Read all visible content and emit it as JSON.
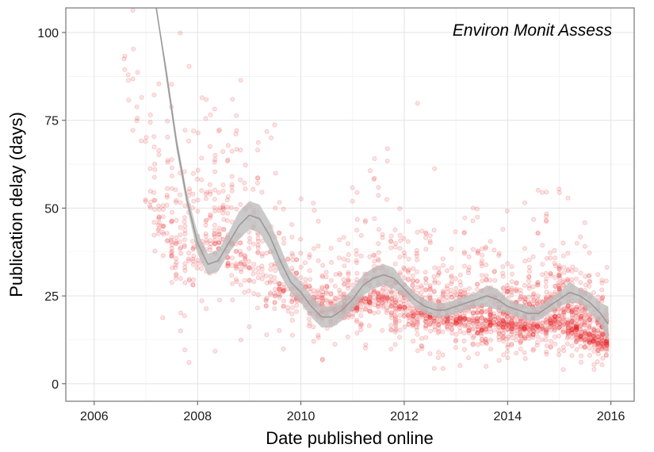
{
  "chart_data": {
    "type": "scatter",
    "title": "",
    "annotation": "Environ Monit Assess",
    "xlabel": "Date published online",
    "ylabel": "Publication delay (days)",
    "xlim": [
      2005.45,
      2016.45
    ],
    "ylim": [
      -5,
      107
    ],
    "x_ticks": [
      2006,
      2008,
      2010,
      2012,
      2014,
      2016
    ],
    "x_tick_labels": [
      "2006",
      "2008",
      "2010",
      "2012",
      "2014",
      "2016"
    ],
    "y_ticks": [
      0,
      25,
      50,
      75,
      100
    ],
    "y_tick_labels": [
      "0",
      "25",
      "50",
      "75",
      "100"
    ],
    "grid": true,
    "point_color": "#e41a1c",
    "point_alpha": 0.12,
    "smooth_color": "#9a9a9a",
    "smooth_band_color": "#bdbdbd",
    "density_profile": [
      {
        "x": 2006.6,
        "center": 95,
        "spread": 12,
        "weight": 0.4
      },
      {
        "x": 2007.0,
        "center": 60,
        "spread": 28,
        "weight": 1.0
      },
      {
        "x": 2007.5,
        "center": 40,
        "spread": 25,
        "weight": 1.6
      },
      {
        "x": 2008.0,
        "center": 40,
        "spread": 25,
        "weight": 2.0
      },
      {
        "x": 2008.5,
        "center": 45,
        "spread": 28,
        "weight": 2.2
      },
      {
        "x": 2009.0,
        "center": 35,
        "spread": 20,
        "weight": 1.6
      },
      {
        "x": 2009.5,
        "center": 30,
        "spread": 16,
        "weight": 1.4
      },
      {
        "x": 2010.0,
        "center": 25,
        "spread": 13,
        "weight": 2.2
      },
      {
        "x": 2010.5,
        "center": 22,
        "spread": 12,
        "weight": 2.6
      },
      {
        "x": 2011.0,
        "center": 23,
        "spread": 13,
        "weight": 2.8
      },
      {
        "x": 2011.5,
        "center": 26,
        "spread": 15,
        "weight": 3.0
      },
      {
        "x": 2012.0,
        "center": 22,
        "spread": 14,
        "weight": 3.2
      },
      {
        "x": 2012.5,
        "center": 20,
        "spread": 13,
        "weight": 3.4
      },
      {
        "x": 2013.0,
        "center": 19,
        "spread": 13,
        "weight": 3.6
      },
      {
        "x": 2013.5,
        "center": 19,
        "spread": 14,
        "weight": 3.8
      },
      {
        "x": 2014.0,
        "center": 18,
        "spread": 12,
        "weight": 4.0
      },
      {
        "x": 2014.5,
        "center": 17,
        "spread": 11,
        "weight": 4.2
      },
      {
        "x": 2015.0,
        "center": 20,
        "spread": 16,
        "weight": 4.6
      },
      {
        "x": 2015.5,
        "center": 15,
        "spread": 10,
        "weight": 5.0
      },
      {
        "x": 2015.95,
        "center": 12,
        "spread": 9,
        "weight": 5.0
      }
    ],
    "point_count": 2600,
    "smooth": {
      "x": [
        2007.2,
        2007.4,
        2007.6,
        2007.8,
        2008.0,
        2008.2,
        2008.4,
        2008.6,
        2008.8,
        2009.0,
        2009.2,
        2009.4,
        2009.6,
        2009.8,
        2010.0,
        2010.2,
        2010.4,
        2010.6,
        2010.8,
        2011.0,
        2011.2,
        2011.4,
        2011.6,
        2011.8,
        2012.0,
        2012.2,
        2012.4,
        2012.6,
        2012.8,
        2013.0,
        2013.2,
        2013.4,
        2013.6,
        2013.8,
        2014.0,
        2014.2,
        2014.4,
        2014.6,
        2014.8,
        2015.0,
        2015.2,
        2015.4,
        2015.6,
        2015.8,
        2015.95
      ],
      "y": [
        107,
        88,
        68,
        52,
        40,
        34,
        35,
        40,
        45,
        48,
        47,
        42,
        35,
        29,
        26,
        22,
        19,
        19,
        21,
        24,
        28,
        30,
        31,
        30,
        27,
        24,
        22,
        21,
        21,
        22,
        23,
        24,
        25,
        24,
        22,
        21,
        20,
        20,
        22,
        24,
        26,
        25,
        23,
        20,
        17
      ],
      "lower": [
        107,
        86,
        66,
        50,
        37,
        31,
        32,
        37,
        41,
        44,
        43,
        38,
        31,
        26,
        23,
        19,
        16,
        16,
        18,
        21,
        25,
        27,
        28,
        27,
        25,
        22,
        20,
        19,
        19,
        20,
        21,
        22,
        22,
        21,
        20,
        19,
        18,
        18,
        20,
        22,
        23,
        23,
        20,
        17,
        12
      ],
      "upper": [
        107,
        90,
        70,
        54,
        43,
        37,
        38,
        43,
        49,
        52,
        51,
        46,
        39,
        32,
        29,
        25,
        22,
        22,
        24,
        27,
        31,
        33,
        34,
        33,
        29,
        26,
        24,
        23,
        23,
        24,
        25,
        26,
        28,
        27,
        24,
        23,
        22,
        22,
        24,
        26,
        29,
        27,
        26,
        23,
        22
      ]
    }
  }
}
